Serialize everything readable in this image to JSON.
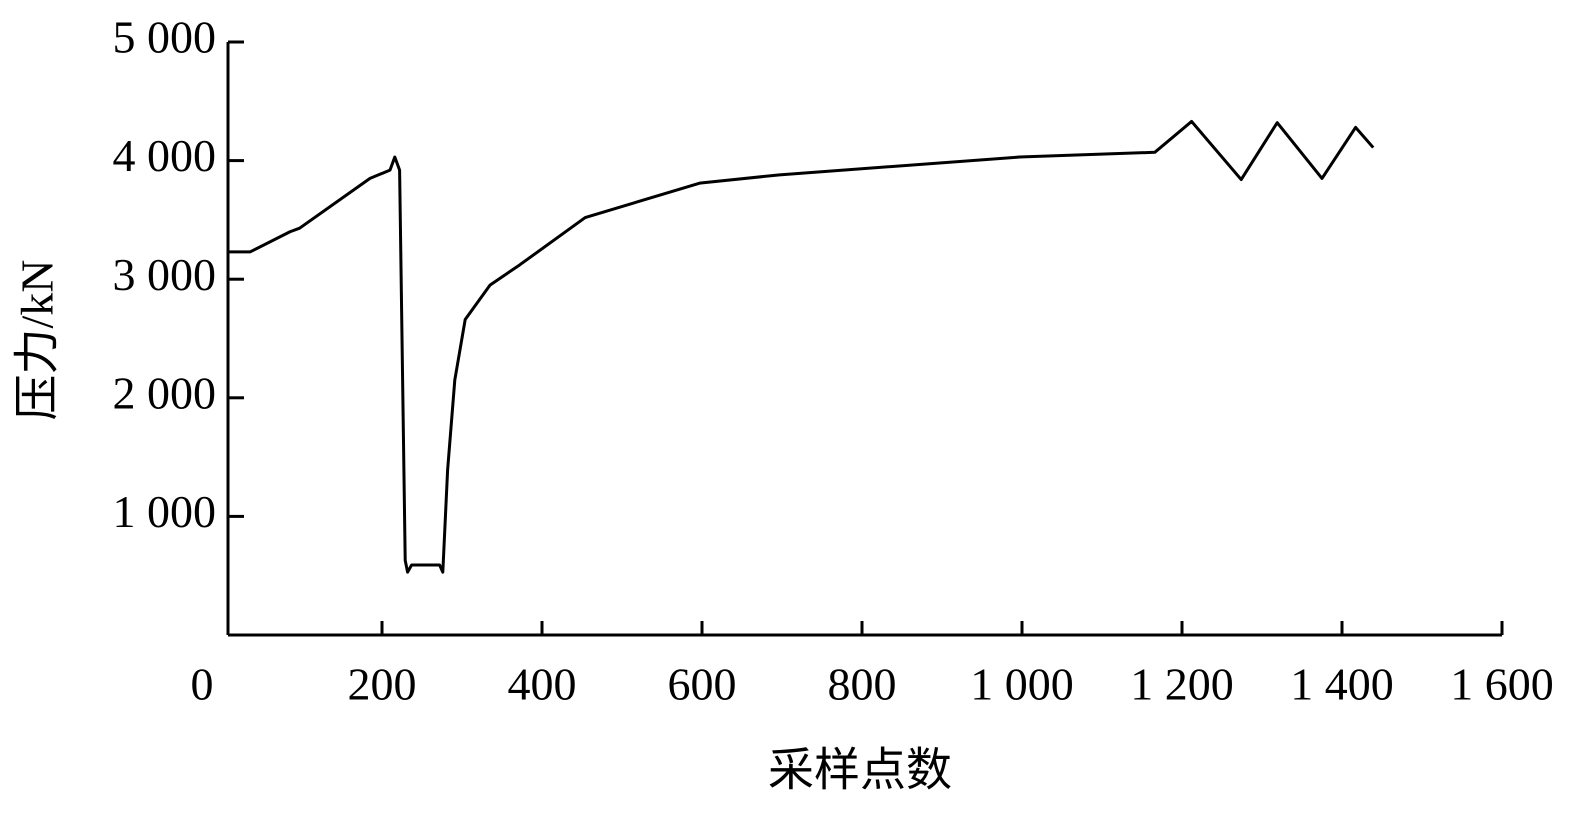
{
  "chart_data": {
    "type": "line",
    "x_label": "采样点数",
    "y_label": "压力/kN",
    "xlim": [
      0,
      1600
    ],
    "ylim": [
      0,
      5000
    ],
    "xticks": [
      0,
      200,
      400,
      600,
      800,
      {
        "value": 1000,
        "label": "1 000"
      },
      {
        "value": 1200,
        "label": "1 200"
      },
      {
        "value": 1400,
        "label": "1 400"
      },
      {
        "value": 1600,
        "label": "1 600"
      }
    ],
    "yticks": [
      {
        "value": 1000,
        "label": "1 000"
      },
      {
        "value": 2000,
        "label": "2 000"
      },
      {
        "value": 3000,
        "label": "3 000"
      },
      {
        "value": 4000,
        "label": "4 000"
      },
      {
        "value": 5000,
        "label": "5 000"
      }
    ],
    "grid": false,
    "series": [
      {
        "color": "#000000",
        "x": [
          7,
          35,
          85,
          97,
          185,
          210,
          216,
          222,
          229,
          232,
          237,
          272,
          276,
          282,
          291,
          304,
          335,
          372,
          454,
          597,
          697,
          997,
          1166,
          1212,
          1274,
          1319,
          1375,
          1417,
          1439
        ],
        "values": [
          3230,
          3230,
          3400,
          3430,
          3850,
          3920,
          4030,
          3920,
          630,
          530,
          590,
          590,
          530,
          1390,
          2150,
          2660,
          2950,
          3120,
          3520,
          3810,
          3880,
          4030,
          4070,
          4330,
          3840,
          4320,
          3850,
          4280,
          4110
        ]
      }
    ]
  }
}
